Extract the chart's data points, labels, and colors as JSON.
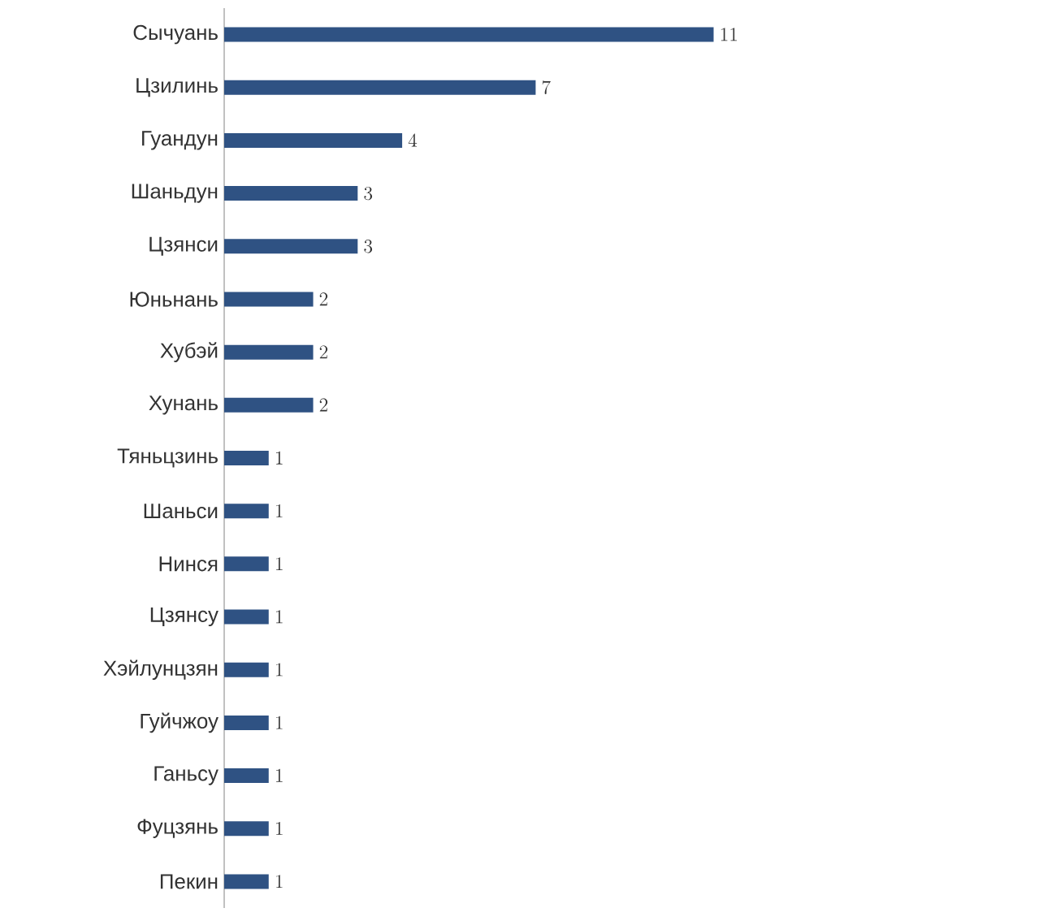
{
  "chart_data": {
    "type": "bar",
    "orientation": "horizontal",
    "categories": [
      "Сычуань",
      "Цзилинь",
      "Гуандун",
      "Шаньдун",
      "Цзянси",
      "Юньнань",
      "Хубэй",
      "Хунань",
      "Тяньцзинь",
      "Шаньси",
      "Нинся",
      "Цзянсу",
      "Хэйлунцзян",
      "Гуйчжоу",
      "Ганьсу",
      "Фуцзянь",
      "Пекин"
    ],
    "values": [
      11,
      7,
      4,
      3,
      3,
      2,
      2,
      2,
      1,
      1,
      1,
      1,
      1,
      1,
      1,
      1,
      1
    ],
    "color": "#2f5283",
    "data_labels": true
  }
}
